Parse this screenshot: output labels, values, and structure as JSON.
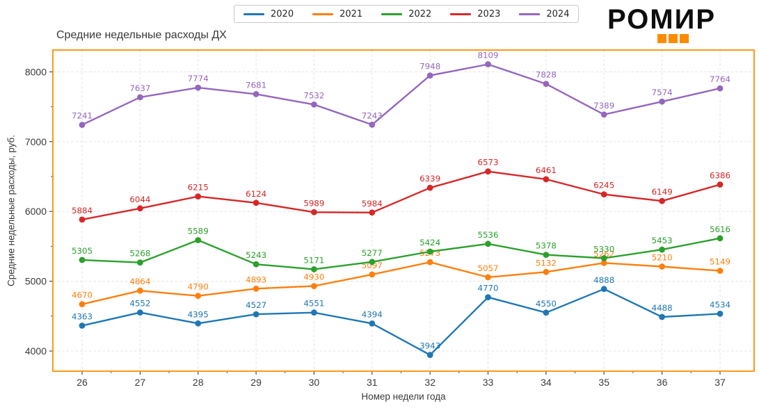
{
  "logo": {
    "text": "РОМИР",
    "accent_color": "#ff8a00"
  },
  "chart_data": {
    "type": "line",
    "title": "Средние недельные расходы ДХ",
    "xlabel": "Номер недели года",
    "ylabel": "Средние недельные расходы, руб.",
    "categories": [
      26,
      27,
      28,
      29,
      30,
      31,
      32,
      33,
      34,
      35,
      36,
      37
    ],
    "yticks": [
      4000,
      5000,
      6000,
      7000,
      8000
    ],
    "ylim": [
      3711,
      8313
    ],
    "grid": true,
    "legend_position": "top-center",
    "frame_color": "#ff8c00",
    "marker": "circle",
    "value_labels": true,
    "series": [
      {
        "name": "2020",
        "color": "#1f77b4",
        "values": [
          4363,
          4552,
          4395,
          4527,
          4551,
          4394,
          3943,
          4770,
          4550,
          4888,
          4488,
          4534
        ]
      },
      {
        "name": "2021",
        "color": "#ff7f0e",
        "values": [
          4670,
          4864,
          4790,
          4893,
          4930,
          5097,
          5273,
          5057,
          5132,
          5262,
          5210,
          5149
        ]
      },
      {
        "name": "2022",
        "color": "#2ca02c",
        "values": [
          5305,
          5268,
          5589,
          5243,
          5171,
          5277,
          5424,
          5536,
          5378,
          5330,
          5453,
          5616
        ]
      },
      {
        "name": "2023",
        "color": "#d62728",
        "values": [
          5884,
          6044,
          6215,
          6124,
          5989,
          5984,
          6339,
          6573,
          6461,
          6245,
          6149,
          6386
        ]
      },
      {
        "name": "2024",
        "color": "#9467bd",
        "values": [
          7241,
          7637,
          7774,
          7681,
          7532,
          7243,
          7948,
          8109,
          7828,
          7389,
          7574,
          7764
        ]
      }
    ]
  }
}
